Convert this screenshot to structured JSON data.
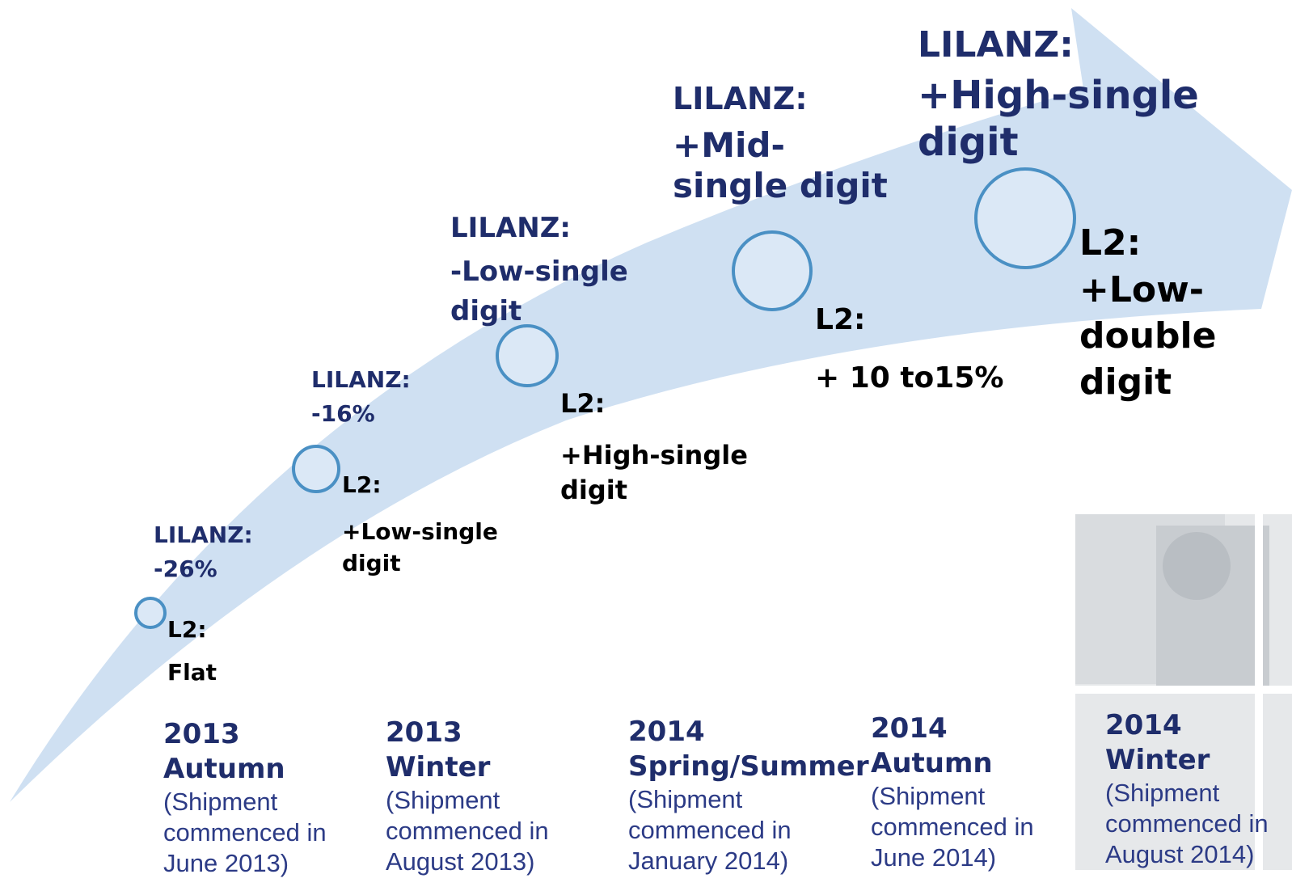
{
  "stages": [
    {
      "lilanz_label": "LILANZ:",
      "lilanz_value": "-26%",
      "l2_label": "L2:",
      "l2_value": "Flat",
      "year": "2013",
      "season": "Autumn",
      "shipment": "(Shipment commenced in June 2013)"
    },
    {
      "lilanz_label": "LILANZ:",
      "lilanz_value": "-16%",
      "l2_label": "L2:",
      "l2_value": "+Low-single digit",
      "year": "2013",
      "season": "Winter",
      "shipment": "(Shipment commenced in August 2013)"
    },
    {
      "lilanz_label": "LILANZ:",
      "lilanz_value": "-Low-single digit",
      "l2_label": "L2:",
      "l2_value": "+High-single digit",
      "year": "2014",
      "season": "Spring/Summer",
      "shipment": "(Shipment commenced in January 2014)"
    },
    {
      "lilanz_label": "LILANZ:",
      "lilanz_value": "+Mid-single digit",
      "l2_label": "L2:",
      "l2_value": "+ 10 to15%",
      "year": "2014",
      "season": "Autumn",
      "shipment": "(Shipment commenced in June 2014)"
    },
    {
      "lilanz_label": "LILANZ:",
      "lilanz_value": "+High-single digit",
      "l2_label": "L2:",
      "l2_value": "+Low-double digit",
      "year": "2014",
      "season": "Winter",
      "shipment": "(Shipment commenced in August 2014)"
    }
  ]
}
